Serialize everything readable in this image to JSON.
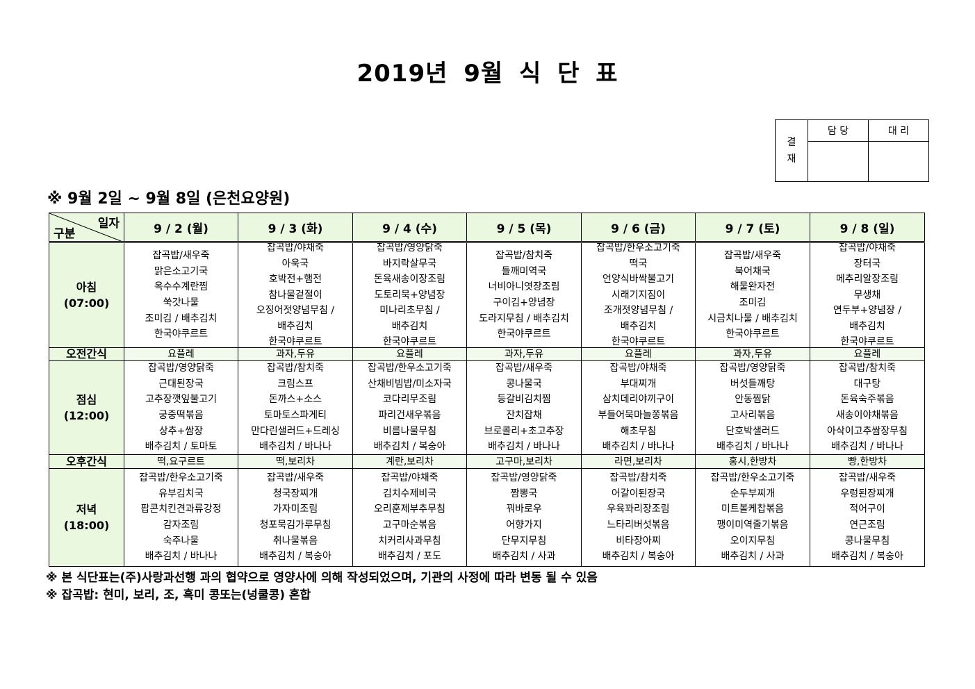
{
  "title": "2019년 9월 식 단 표",
  "approval": {
    "label": "결\n재",
    "label_lines": [
      "결",
      "재"
    ],
    "columns": [
      "담 당",
      "대 리"
    ]
  },
  "subtitle": "※ 9월 2일 ~ 9월 8일 (은천요양원)",
  "table": {
    "corner_top": "일자",
    "corner_bottom": "구분",
    "days": [
      "9 / 2 (월)",
      "9 / 3 (화)",
      "9 / 4 (수)",
      "9 / 5 (목)",
      "9 / 6 (금)",
      "9 / 7 (토)",
      "9 / 8 (일)"
    ],
    "rows": [
      {
        "category": [
          "아침",
          "(07:00)"
        ],
        "type": "meal",
        "cells": [
          [
            "잡곡밥/새우죽",
            "맑은소고기국",
            "옥수수계란찜",
            "쑥갓나물",
            "조미김 / 배추김치",
            "한국야쿠르트"
          ],
          [
            "잡곡밥/야채죽",
            "아욱국",
            "호박전+햄전",
            "참나물겉절이",
            "오징어젓양념무침 /",
            "배추김치",
            "한국야쿠르트"
          ],
          [
            "잡곡밥/영양닭죽",
            "바지락살무국",
            "돈육새송이장조림",
            "도토리묵+양념장",
            "미나리초무침 /",
            "배추김치",
            "한국야쿠르트"
          ],
          [
            "잡곡밥/참치죽",
            "들깨미역국",
            "너비아니엿장조림",
            "구이김+양념장",
            "도라지무침 / 배추김치",
            "한국야쿠르트"
          ],
          [
            "잡곡밥/한우소고기죽",
            "떡국",
            "언양식바싹불고기",
            "시래기지짐이",
            "조개젓양념무침 /",
            "배추김치",
            "한국야쿠르트"
          ],
          [
            "잡곡밥/새우죽",
            "북어채국",
            "해물완자전",
            "조미김",
            "시금치나물 / 배추김치",
            "한국야쿠르트"
          ],
          [
            "잡곡밥/야채죽",
            "장터국",
            "메추리알장조림",
            "무생채",
            "연두부+양념장 /",
            "배추김치",
            "한국야쿠르트"
          ]
        ]
      },
      {
        "category": [
          "오전간식"
        ],
        "type": "snack",
        "cells": [
          [
            "요플레"
          ],
          [
            "과자,두유"
          ],
          [
            "요플레"
          ],
          [
            "과자,두유"
          ],
          [
            "요플레"
          ],
          [
            "과자,두유"
          ],
          [
            "요플레"
          ]
        ]
      },
      {
        "category": [
          "점심",
          "(12:00)"
        ],
        "type": "meal",
        "cells": [
          [
            "잡곡밥/영양닭죽",
            "근대된장국",
            "고추장깻잎불고기",
            "궁중떡볶음",
            "상추+쌈장",
            "배추김치 / 토마토"
          ],
          [
            "잡곡밥/참치죽",
            "크림스프",
            "돈까스+소스",
            "토마토스파게티",
            "만다린샐러드+드레싱",
            "배추김치 / 바나나"
          ],
          [
            "잡곡밥/한우소고기죽",
            "산채비빔밥/미소자국",
            "코다리무조림",
            "파리건새우볶음",
            "비름나물무침",
            "배추김치 / 복숭아"
          ],
          [
            "잡곡밥/새우죽",
            "콩나물국",
            "등갈비김치찜",
            "잔치잡채",
            "브로콜리+초고추장",
            "배추김치 / 바나나"
          ],
          [
            "잡곡밥/야채죽",
            "부대찌개",
            "삼치데리야끼구이",
            "부들어묵마늘쫑볶음",
            "해초무침",
            "배추김치 / 바나나"
          ],
          [
            "잡곡밥/영양닭죽",
            "버섯들깨탕",
            "안동찜닭",
            "고사리볶음",
            "단호박샐러드",
            "배추김치 / 바나나"
          ],
          [
            "잡곡밥/참치죽",
            "대구탕",
            "돈육숙주볶음",
            "새송이야채볶음",
            "아삭이고추쌈장무침",
            "배추김치 / 바나나"
          ]
        ]
      },
      {
        "category": [
          "오후간식"
        ],
        "type": "snack",
        "cells": [
          [
            "떡,요구르트"
          ],
          [
            "떡,보리차"
          ],
          [
            "계란,보리차"
          ],
          [
            "고구마,보리차"
          ],
          [
            "라면,보리차"
          ],
          [
            "홍시,한방차"
          ],
          [
            "빵,한방차"
          ]
        ]
      },
      {
        "category": [
          "저녁",
          "(18:00)"
        ],
        "type": "meal",
        "cells": [
          [
            "잡곡밥/한우소고기죽",
            "유부김치국",
            "팝콘치킨견과류강정",
            "감자조림",
            "숙주나물",
            "배추김치 / 바나나"
          ],
          [
            "잡곡밥/새우죽",
            "청국장찌개",
            "가자미조림",
            "청포묵김가루무침",
            "취나물볶음",
            "배추김치 / 복숭아"
          ],
          [
            "잡곡밥/야채죽",
            "김치수제비국",
            "오리훈제부추무침",
            "고구마순볶음",
            "치커리사과무침",
            "배추김치 / 포도"
          ],
          [
            "잡곡밥/영양닭죽",
            "짬뽕국",
            "꿔바로우",
            "어향가지",
            "단무지무침",
            "배추김치 / 사과"
          ],
          [
            "잡곡밥/참치죽",
            "어갈이된장국",
            "우육꽈리장조림",
            "느타리버섯볶음",
            "비타장아찌",
            "배추김치 / 복숭아"
          ],
          [
            "잡곡밥/한우소고기죽",
            "순두부찌개",
            "미트볼케찹볶음",
            "팽이미역줄기볶음",
            "오이지무침",
            "배추김치 / 사과"
          ],
          [
            "잡곡밥/새우죽",
            "우렁된장찌개",
            "적어구이",
            "연근조림",
            "콩나물무침",
            "배추김치 / 복숭아"
          ]
        ]
      }
    ]
  },
  "notes": [
    "※ 본 식단표는(주)사랑과선행 과의 협약으로 영양사에 의해 작성되었으며, 기관의 사정에 따라 변동 될 수 있음",
    "※ 잡곡밥: 현미, 보리, 조, 흑미 콩또는(넝쿨콩) 혼합"
  ],
  "colors": {
    "header_bg": "#e9f8df",
    "snack_bg": "#f1faec"
  }
}
